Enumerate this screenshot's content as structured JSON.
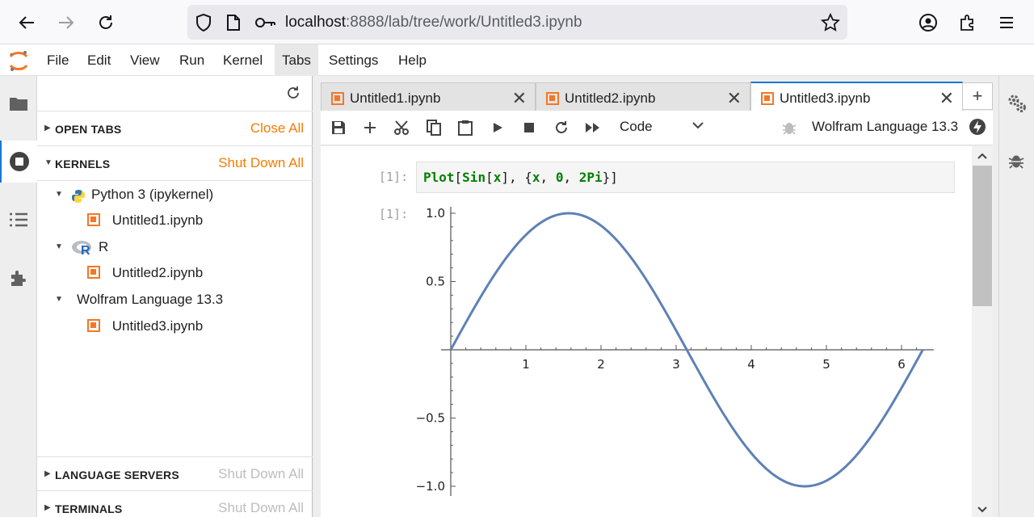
{
  "browser": {
    "url_host": "localhost",
    "url_rest": ":8888/lab/tree/work/Untitled3.ipynb"
  },
  "menu": [
    "File",
    "Edit",
    "View",
    "Run",
    "Kernel",
    "Tabs",
    "Settings",
    "Help"
  ],
  "sidepanel": {
    "open_tabs": {
      "title": "OPEN TABS",
      "action": "Close All"
    },
    "kernels": {
      "title": "KERNELS",
      "action": "Shut Down All",
      "items": [
        {
          "name": "Python 3 (ipykernel)",
          "notebook": "Untitled1.ipynb"
        },
        {
          "name": "R",
          "notebook": "Untitled2.ipynb"
        },
        {
          "name": "Wolfram Language 13.3",
          "notebook": "Untitled3.ipynb"
        }
      ]
    },
    "language_servers": {
      "title": "LANGUAGE SERVERS",
      "action": "Shut Down All"
    },
    "terminals": {
      "title": "TERMINALS",
      "action": "Shut Down All"
    }
  },
  "tabs": [
    {
      "label": "Untitled1.ipynb",
      "active": false
    },
    {
      "label": "Untitled2.ipynb",
      "active": false
    },
    {
      "label": "Untitled3.ipynb",
      "active": true
    }
  ],
  "toolbar": {
    "cell_type": "Code",
    "kernel": "Wolfram Language 13.3"
  },
  "cell": {
    "in_prompt": "[1]:",
    "out_prompt": "[1]:",
    "code": {
      "fn": "Plot",
      "open": "[",
      "inner_fn": "Sin",
      "inner_open": "[",
      "var": "x",
      "inner_close": "]",
      "comma1": ", ",
      "brace_open": "{",
      "var2": "x",
      "comma2": ", ",
      "n0": "0",
      "comma3": ", ",
      "n2pi": "2Pi",
      "brace_close": "}",
      "close": "]"
    }
  },
  "chart_data": {
    "type": "line",
    "series": [
      {
        "function": "sin(x)",
        "x_range": [
          0,
          6.2832
        ],
        "color": "#5e81b5"
      }
    ],
    "x_ticks": [
      "1",
      "2",
      "3",
      "4",
      "5",
      "6"
    ],
    "y_ticks": [
      "1.0",
      "0.5",
      "−0.5",
      "−1.0"
    ],
    "xlim": [
      0,
      6.3
    ],
    "ylim": [
      -1.0,
      1.0
    ],
    "grid": false
  }
}
